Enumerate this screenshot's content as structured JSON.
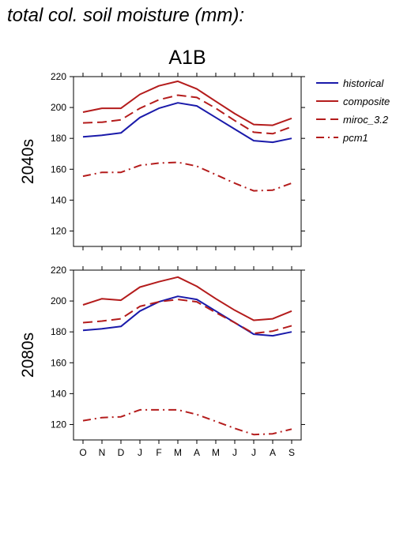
{
  "page": {
    "title": "total col. soil moisture (mm):"
  },
  "chart_data": {
    "type": "line",
    "scenario": "A1B",
    "categories": [
      "O",
      "N",
      "D",
      "J",
      "F",
      "M",
      "A",
      "M",
      "J",
      "J",
      "A",
      "S"
    ],
    "ylim": [
      110,
      220
    ],
    "yticks": [
      120,
      140,
      160,
      180,
      200,
      220
    ],
    "legend_position": "top-right, outside plot",
    "grid": false,
    "styles": {
      "historical": {
        "color": "#1a1aaa",
        "dash": "solid"
      },
      "composite": {
        "color": "#b41c1c",
        "dash": "solid"
      },
      "miroc_3.2": {
        "color": "#b41c1c",
        "dash": "long-dash"
      },
      "pcm1": {
        "color": "#b41c1c",
        "dash": "dash-dot"
      }
    },
    "legend": [
      "historical",
      "composite",
      "miroc_3.2",
      "pcm1"
    ],
    "panels": [
      {
        "label": "2040s",
        "series": [
          {
            "name": "historical",
            "values": [
              181,
              182,
              183.5,
              193.5,
              199.5,
              203,
              201,
              193.5,
              186,
              178.5,
              177.5,
              180
            ]
          },
          {
            "name": "composite",
            "values": [
              197,
              199.5,
              199.5,
              208.5,
              214,
              217,
              212,
              204,
              196,
              189,
              188.5,
              193
            ]
          },
          {
            "name": "miroc_3.2",
            "values": [
              190,
              190.5,
              192,
              199.5,
              205,
              208,
              206.5,
              199.5,
              191.5,
              184,
              183,
              187.5
            ]
          },
          {
            "name": "pcm1",
            "values": [
              155.5,
              158,
              158,
              162.5,
              164,
              164.5,
              162,
              156.5,
              151,
              146,
              146.5,
              151
            ]
          }
        ]
      },
      {
        "label": "2080s",
        "series": [
          {
            "name": "historical",
            "values": [
              181,
              182,
              183.5,
              193.5,
              199.5,
              203,
              201,
              193.5,
              186,
              178.5,
              177.5,
              180
            ]
          },
          {
            "name": "composite",
            "values": [
              197.5,
              201.5,
              200.5,
              209,
              212.5,
              215.5,
              209.5,
              201.5,
              194,
              187.5,
              188.5,
              193.5
            ]
          },
          {
            "name": "miroc_3.2",
            "values": [
              186,
              187,
              188.5,
              196.5,
              199.5,
              201,
              199.5,
              192.5,
              186,
              179,
              180.5,
              184
            ]
          },
          {
            "name": "pcm1",
            "values": [
              122.5,
              124.5,
              125,
              129.5,
              129.5,
              129.5,
              126.5,
              122,
              117.5,
              113.5,
              114,
              117
            ]
          }
        ]
      }
    ]
  }
}
